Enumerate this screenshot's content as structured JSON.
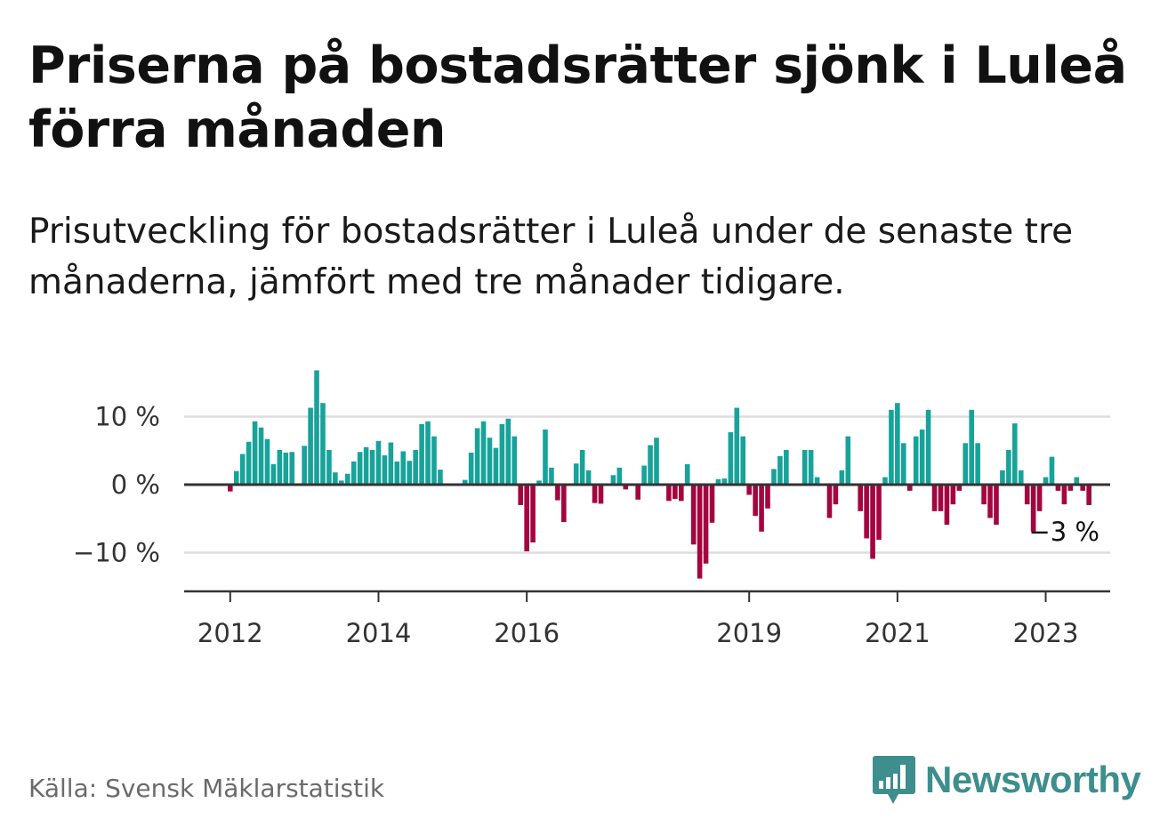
{
  "title": "Priserna på bostadsrätter sjönk i Luleå förra månaden",
  "subtitle": "Prisutveckling för bostadsrätter i Luleå under de senaste tre månaderna, jämfört med tre månader tidigare.",
  "source": "Källa: Svensk Mäklarstatistik",
  "brand": {
    "name": "Newsworthy",
    "logo_icon": "bar-chart-speech-bubble-icon",
    "color": "#3d8e8c"
  },
  "colors": {
    "positive": "#17a39a",
    "negative": "#a3063f",
    "grid": "#dddddd",
    "axis": "#333333"
  },
  "chart_data": {
    "type": "bar",
    "x_unit": "month",
    "x_start": "2012-01",
    "x_ticks": [
      "2012",
      "2014",
      "2016",
      "2019",
      "2021",
      "2023"
    ],
    "y_ticks": [
      "10 %",
      "0 %",
      "−10 %"
    ],
    "y_tick_values": [
      10,
      0,
      -10
    ],
    "ylim": [
      -15,
      17
    ],
    "grid": true,
    "last_value_label": "−3 %",
    "values": [
      -1,
      2,
      4.5,
      6.3,
      9.3,
      8.4,
      6.7,
      3,
      5.1,
      4.7,
      4.8,
      null,
      5.7,
      11.3,
      16.8,
      12,
      5.1,
      1.8,
      0.6,
      1.6,
      3.4,
      4.8,
      5.5,
      5.1,
      6.4,
      4.3,
      6.2,
      3.4,
      4.9,
      3.5,
      5.1,
      8.9,
      9.3,
      7.1,
      2.2,
      null,
      null,
      null,
      0.7,
      4.7,
      8.3,
      9.3,
      6.9,
      5.4,
      8.9,
      9.7,
      7.1,
      -3,
      -9.8,
      -8.5,
      0.6,
      8.1,
      2.5,
      -2.3,
      -5.5,
      null,
      3.1,
      5.1,
      2.1,
      -2.7,
      -2.8,
      null,
      1.4,
      2.5,
      -0.7,
      null,
      -2.2,
      2.8,
      5.8,
      6.9,
      null,
      -2.4,
      -2.1,
      -2.4,
      3,
      -8.8,
      -13.8,
      -11.6,
      -5.6,
      0.8,
      0.9,
      7.7,
      11.3,
      7.1,
      -1.5,
      -4.6,
      -6.9,
      -3.5,
      2.3,
      4.2,
      5.1,
      null,
      null,
      5.1,
      5.1,
      1.1,
      null,
      -4.9,
      -2.9,
      2.1,
      7.1,
      null,
      -3.9,
      -7.9,
      -10.9,
      -8.1,
      1.1,
      11,
      12,
      6.1,
      -0.9,
      7.1,
      8.1,
      11,
      -3.9,
      -3.9,
      -5.9,
      -2.9,
      -0.9,
      6.1,
      11,
      6.1,
      -2.9,
      -4.9,
      -5.9,
      2.1,
      5.1,
      9,
      2.1,
      -2.9,
      -6.9,
      -3.9,
      1.1,
      4.1,
      -0.9,
      -2.9,
      -0.9,
      1.1,
      -0.9,
      -3
    ]
  }
}
